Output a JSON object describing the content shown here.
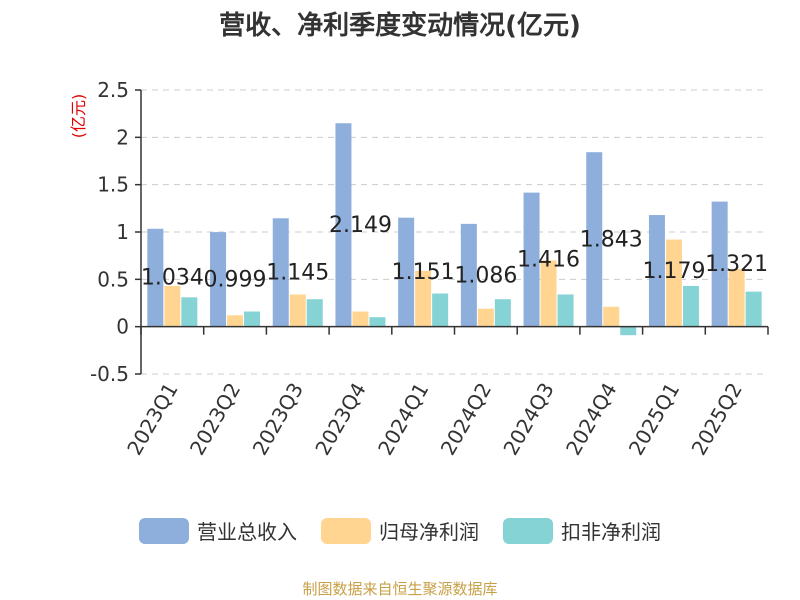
{
  "chart_data": {
    "type": "bar",
    "title": "营收、净利季度变动情况(亿元)",
    "ylabel": "(亿元)",
    "xlabel": "",
    "ylim": [
      -0.5,
      2.5
    ],
    "yticks": [
      -0.5,
      0,
      0.5,
      1,
      1.5,
      2,
      2.5
    ],
    "ytick_labels": [
      "-0.5",
      "0",
      "0.5",
      "1",
      "1.5",
      "2",
      "2.5"
    ],
    "grid": true,
    "legend_position": "bottom",
    "categories": [
      "2023Q1",
      "2023Q2",
      "2023Q3",
      "2023Q4",
      "2024Q1",
      "2024Q2",
      "2024Q3",
      "2024Q4",
      "2025Q1",
      "2025Q2"
    ],
    "series": [
      {
        "name": "营业总收入",
        "color": "#8eaedc",
        "values": [
          1.034,
          0.999,
          1.145,
          2.149,
          1.151,
          1.086,
          1.416,
          1.843,
          1.179,
          1.321
        ]
      },
      {
        "name": "归母净利润",
        "color": "#ffd591",
        "values": [
          0.43,
          0.12,
          0.34,
          0.16,
          0.59,
          0.19,
          0.7,
          0.21,
          0.92,
          0.61
        ]
      },
      {
        "name": "扣非净利润",
        "color": "#86d3d5",
        "values": [
          0.31,
          0.16,
          0.29,
          0.1,
          0.35,
          0.29,
          0.34,
          -0.09,
          0.43,
          0.37
        ]
      }
    ],
    "data_labels": [
      "1.034",
      "0.999",
      "1.145",
      "2.149",
      "1.151",
      "1.086",
      "1.416",
      "1.843",
      "1.179",
      "1.321"
    ]
  },
  "footer": "制图数据来自恒生聚源数据库"
}
